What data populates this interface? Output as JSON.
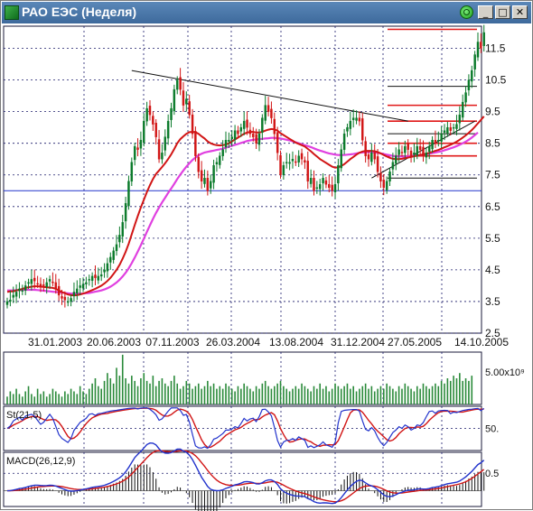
{
  "window": {
    "title": "РАО ЕЭС (Неделя)",
    "min_glyph": "_",
    "max_glyph": "□",
    "close_glyph": "✕"
  },
  "colors": {
    "bull": "#0a7a2a",
    "bear": "#d11515",
    "ma_fast": "#d11515",
    "ma_slow": "#e040e0",
    "support": "#2233cc",
    "resistance": "#e01818",
    "trend": "#111111",
    "stoch_k": "#2233cc",
    "stoch_d": "#d11515",
    "macd": "#2233cc",
    "macd_signal": "#d11515",
    "grid": "#1a1a6a",
    "volume": "#2a8a3a"
  },
  "chart_data": [
    {
      "panel": "price",
      "type": "candlestick",
      "y_ticks": [
        "11.5",
        "10.5",
        "9.5",
        "8.5",
        "7.5",
        "6.5",
        "5.5",
        "4.5",
        "3.5",
        "2.5"
      ],
      "ylim": [
        2.5,
        12.2
      ],
      "x_ticks": [
        "31.01.2003",
        "20.06.2003",
        "07.11.2003",
        "26.03.2004",
        "13.08.2004",
        "31.12.2004",
        "27.05.2005",
        "14.10.2005"
      ],
      "x_count": 156,
      "candles_close": [
        3.5,
        3.55,
        3.7,
        3.8,
        3.9,
        3.85,
        4.0,
        4.1,
        4.2,
        4.15,
        4.05,
        3.95,
        4.0,
        4.1,
        4.2,
        4.1,
        3.9,
        3.7,
        3.6,
        3.55,
        3.5,
        3.6,
        3.8,
        3.9,
        4.0,
        4.05,
        4.1,
        4.2,
        4.3,
        4.25,
        4.3,
        4.35,
        4.5,
        4.7,
        4.9,
        5.1,
        5.3,
        5.6,
        6.0,
        6.6,
        7.3,
        7.9,
        8.4,
        8.3,
        8.6,
        9.2,
        9.6,
        9.4,
        9.1,
        8.7,
        8.0,
        8.2,
        8.7,
        9.2,
        9.6,
        10.2,
        10.5,
        10.2,
        9.7,
        9.9,
        9.4,
        8.8,
        8.1,
        7.6,
        7.3,
        7.4,
        7.0,
        7.3,
        7.8,
        7.9,
        8.1,
        8.3,
        8.6,
        8.6,
        8.7,
        8.9,
        8.8,
        9.0,
        9.2,
        9.0,
        8.8,
        8.7,
        8.5,
        8.8,
        9.3,
        9.7,
        9.5,
        9.3,
        8.8,
        8.2,
        7.5,
        7.8,
        7.9,
        7.9,
        8.0,
        7.9,
        8.1,
        8.0,
        7.9,
        7.3,
        7.4,
        7.0,
        7.1,
        7.2,
        7.4,
        7.2,
        7.1,
        7.0,
        7.2,
        7.8,
        8.3,
        8.8,
        9.0,
        9.2,
        9.3,
        9.3,
        9.2,
        8.6,
        8.1,
        8.0,
        8.2,
        8.0,
        7.6,
        7.3,
        7.1,
        7.3,
        7.6,
        7.9,
        8.1,
        8.3,
        8.2,
        8.4,
        8.3,
        8.1,
        8.2,
        8.4,
        8.3,
        8.1,
        8.2,
        8.4,
        8.6,
        8.5,
        8.6,
        8.8,
        8.9,
        9.0,
        8.9,
        9.0,
        9.1,
        9.4,
        9.8,
        10.1,
        10.5,
        10.8,
        11.3,
        11.7,
        11.5,
        12.0
      ],
      "ma_fast": [
        3.8,
        3.82,
        3.82,
        3.85,
        3.87,
        3.9,
        3.93,
        3.95,
        3.97,
        3.98,
        3.98,
        3.97,
        3.96,
        3.95,
        3.94,
        3.93,
        3.9,
        3.85,
        3.8,
        3.76,
        3.72,
        3.7,
        3.69,
        3.7,
        3.72,
        3.75,
        3.78,
        3.82,
        3.86,
        3.9,
        3.95,
        4.0,
        4.07,
        4.15,
        4.25,
        4.37,
        4.5,
        4.66,
        4.85,
        5.07,
        5.33,
        5.62,
        5.92,
        6.2,
        6.47,
        6.72,
        6.96,
        7.18,
        7.37,
        7.53,
        7.64,
        7.75,
        7.87,
        8.0,
        8.15,
        8.32,
        8.5,
        8.63,
        8.72,
        8.8,
        8.85,
        8.86,
        8.85,
        8.8,
        8.72,
        8.65,
        8.56,
        8.5,
        8.46,
        8.44,
        8.43,
        8.44,
        8.46,
        8.5,
        8.56,
        8.62,
        8.68,
        8.74,
        8.8,
        8.84,
        8.86,
        8.86,
        8.84,
        8.84,
        8.86,
        8.9,
        8.93,
        8.95,
        8.94,
        8.9,
        8.82,
        8.76,
        8.7,
        8.64,
        8.58,
        8.52,
        8.48,
        8.44,
        8.4,
        8.32,
        8.25,
        8.16,
        8.08,
        8.0,
        7.94,
        7.88,
        7.82,
        7.76,
        7.73,
        7.74,
        7.78,
        7.84,
        7.92,
        8.0,
        8.07,
        8.14,
        8.2,
        8.24,
        8.26,
        8.26,
        8.26,
        8.25,
        8.22,
        8.18,
        8.13,
        8.08,
        8.04,
        8.01,
        8.0,
        8.0,
        8.01,
        8.03,
        8.05,
        8.07,
        8.09,
        8.11,
        8.13,
        8.15,
        8.17,
        8.2,
        8.23,
        8.26,
        8.29,
        8.33,
        8.37,
        8.41,
        8.45,
        8.5,
        8.55,
        8.61,
        8.68,
        8.75,
        8.83,
        8.92,
        9.02,
        9.13,
        9.24,
        9.35
      ],
      "ma_slow": [
        3.85,
        3.85,
        3.85,
        3.86,
        3.86,
        3.87,
        3.87,
        3.87,
        3.87,
        3.87,
        3.86,
        3.85,
        3.84,
        3.83,
        3.82,
        3.81,
        3.8,
        3.79,
        3.78,
        3.77,
        3.76,
        3.75,
        3.75,
        3.75,
        3.75,
        3.75,
        3.76,
        3.77,
        3.79,
        3.81,
        3.83,
        3.85,
        3.88,
        3.92,
        3.97,
        4.03,
        4.1,
        4.19,
        4.29,
        4.41,
        4.55,
        4.71,
        4.89,
        5.08,
        5.28,
        5.49,
        5.7,
        5.91,
        6.11,
        6.3,
        6.47,
        6.63,
        6.78,
        6.93,
        7.07,
        7.22,
        7.37,
        7.51,
        7.64,
        7.76,
        7.87,
        7.97,
        8.05,
        8.12,
        8.17,
        8.21,
        8.23,
        8.25,
        8.27,
        8.29,
        8.31,
        8.33,
        8.36,
        8.39,
        8.42,
        8.45,
        8.48,
        8.51,
        8.54,
        8.57,
        8.59,
        8.61,
        8.62,
        8.63,
        8.64,
        8.65,
        8.66,
        8.67,
        8.67,
        8.66,
        8.65,
        8.63,
        8.61,
        8.59,
        8.56,
        8.53,
        8.5,
        8.47,
        8.44,
        8.41,
        8.38,
        8.34,
        8.3,
        8.27,
        8.24,
        8.21,
        8.18,
        8.16,
        8.14,
        8.13,
        8.13,
        8.13,
        8.14,
        8.15,
        8.16,
        8.18,
        8.2,
        8.21,
        8.22,
        8.22,
        8.22,
        8.21,
        8.2,
        8.18,
        8.16,
        8.14,
        8.12,
        8.1,
        8.09,
        8.08,
        8.08,
        8.08,
        8.09,
        8.1,
        8.11,
        8.12,
        8.13,
        8.14,
        8.15,
        8.17,
        8.19,
        8.21,
        8.23,
        8.25,
        8.28,
        8.31,
        8.34,
        8.37,
        8.41,
        8.45,
        8.5,
        8.55,
        8.61,
        8.68,
        8.76,
        8.84
      ],
      "support_y": 7.0,
      "resistance_levels": [
        12.1,
        9.7,
        9.2,
        8.5,
        8.1
      ],
      "black_levels": [
        10.3,
        8.8,
        7.4
      ],
      "trendline": {
        "from": [
          41,
          10.8
        ],
        "to": [
          132,
          9.2
        ]
      },
      "uptrend": {
        "from": [
          120,
          7.4
        ],
        "to": [
          154,
          9.2
        ]
      }
    },
    {
      "panel": "volume",
      "type": "bar",
      "y_label": "5.00x10⁹",
      "values": [
        0.3,
        0.5,
        0.4,
        0.6,
        0.4,
        0.3,
        0.5,
        0.7,
        0.4,
        0.3,
        0.6,
        0.4,
        0.5,
        0.3,
        0.4,
        0.6,
        0.5,
        0.4,
        0.3,
        0.5,
        0.4,
        0.6,
        0.5,
        0.4,
        0.7,
        0.5,
        0.4,
        0.6,
        0.8,
        1.0,
        0.7,
        0.6,
        0.9,
        1.2,
        1.0,
        0.8,
        1.4,
        1.1,
        1.9,
        1.0,
        0.8,
        1.1,
        0.9,
        0.7,
        1.0,
        1.2,
        0.9,
        0.8,
        1.1,
        0.7,
        0.9,
        1.0,
        0.8,
        0.7,
        0.9,
        1.1,
        0.8,
        0.6,
        0.7,
        0.9,
        0.8,
        0.6,
        0.7,
        0.8,
        0.6,
        0.7,
        0.9,
        0.7,
        0.8,
        0.6,
        0.7,
        0.6,
        0.8,
        0.7,
        0.6,
        0.5,
        0.7,
        0.6,
        0.8,
        0.7,
        0.6,
        0.5,
        0.7,
        0.6,
        0.8,
        0.9,
        0.7,
        0.6,
        0.7,
        0.8,
        0.9,
        0.7,
        0.6,
        0.5,
        0.6,
        0.7,
        0.6,
        0.8,
        0.7,
        0.6,
        0.5,
        0.7,
        0.6,
        0.8,
        0.6,
        0.7,
        0.5,
        0.6,
        0.8,
        0.7,
        0.6,
        0.7,
        0.8,
        0.6,
        0.7,
        0.5,
        0.6,
        0.7,
        0.8,
        0.6,
        0.7,
        0.5,
        0.6,
        0.7,
        0.6,
        0.8,
        0.7,
        0.6,
        0.5,
        0.7,
        0.6,
        0.8,
        0.7,
        0.6,
        0.5,
        0.7,
        0.6,
        0.8,
        0.7,
        0.6,
        0.7,
        0.8,
        0.7,
        0.9,
        0.8,
        1.0,
        0.9,
        1.1,
        1.0,
        1.2,
        0.9,
        1.0,
        0.9,
        1.1
      ],
      "ylim": [
        0,
        2.0
      ]
    },
    {
      "panel": "stochastic",
      "type": "line",
      "label": "St(21,5)",
      "y_tick": "50.",
      "ylim": [
        0,
        100
      ]
    },
    {
      "panel": "macd",
      "type": "line+histogram",
      "label": "MACD(26,12,9)",
      "y_tick": "0.5",
      "ylim": [
        -0.45,
        1.1
      ]
    }
  ]
}
